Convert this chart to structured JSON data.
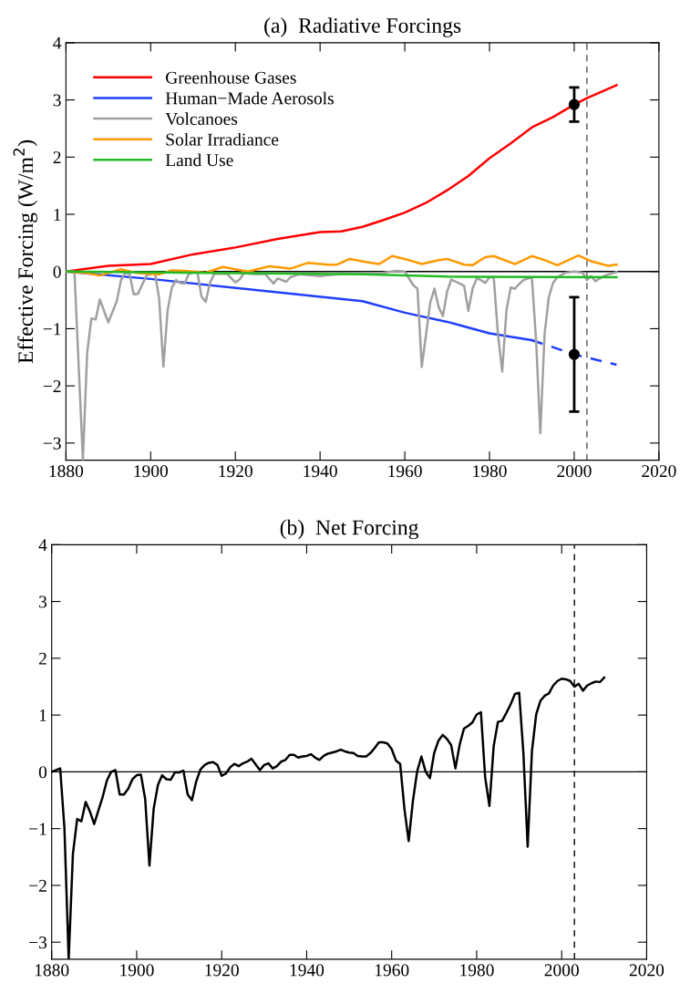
{
  "chart_data": [
    {
      "type": "line",
      "title": "(a)  Radiative Forcings",
      "ylabel": "Effective Forcing (W/m$^{2}$)",
      "xlim": [
        1880,
        2020
      ],
      "xticks": [
        1880,
        1900,
        1920,
        1940,
        1960,
        1980,
        2000,
        2020
      ],
      "ylim": [
        -3.3,
        4
      ],
      "yticks": [
        -3,
        -2,
        -1,
        0,
        1,
        2,
        3,
        4
      ],
      "grid": false,
      "legend": "top left",
      "ref_lines": [
        {
          "axis": "y",
          "value": 0,
          "color": "#000000",
          "line_style": "solid"
        },
        {
          "axis": "x",
          "value": 2003,
          "color": "#555555",
          "line_style": "dashed"
        }
      ],
      "series": [
        {
          "name": "Greenhouse Gases",
          "color": "#ff0000",
          "x": [
            1880,
            1890,
            1900,
            1910,
            1920,
            1930,
            1940,
            1945,
            1950,
            1955,
            1960,
            1965,
            1970,
            1975,
            1980,
            1985,
            1990,
            1995,
            2000,
            2003,
            2010
          ],
          "values": [
            0,
            0.1,
            0.13,
            0.3,
            0.42,
            0.57,
            0.69,
            0.7,
            0.78,
            0.9,
            1.03,
            1.2,
            1.42,
            1.67,
            1.98,
            2.24,
            2.52,
            2.7,
            2.92,
            3.03,
            3.26
          ]
        },
        {
          "name": "Human−Made Aerosols",
          "color": "#1f3fff",
          "x": [
            1880,
            1900,
            1950,
            1960,
            1970,
            1980,
            1990
          ],
          "values": [
            0,
            -0.13,
            -0.52,
            -0.72,
            -0.88,
            -1.08,
            -1.2
          ]
        },
        {
          "color": "#1f3fff",
          "line_style": "dashed",
          "x": [
            1990,
            2000,
            2010
          ],
          "values": [
            -1.2,
            -1.45,
            -1.63
          ]
        },
        {
          "name": "Volcanoes",
          "color": "#a0a0a0",
          "x": [
            1880,
            1882,
            1884,
            1885,
            1886,
            1887,
            1888,
            1890,
            1892,
            1893,
            1894,
            1895,
            1896,
            1897,
            1898,
            1899,
            1901,
            1902,
            1903,
            1904,
            1905,
            1906,
            1907,
            1908,
            1909,
            1910,
            1911,
            1912,
            1913,
            1914,
            1915,
            1918,
            1920,
            1921,
            1922,
            1925,
            1927,
            1929,
            1930,
            1932,
            1933,
            1935,
            1937,
            1940,
            1945,
            1950,
            1955,
            1958,
            1960,
            1962,
            1963,
            1964,
            1966,
            1967,
            1968,
            1969,
            1970,
            1971,
            1974,
            1975,
            1976,
            1977,
            1978,
            1979,
            1980,
            1981,
            1982,
            1983,
            1984,
            1985,
            1986,
            1987,
            1988,
            1990,
            1991,
            1992,
            1993,
            1994,
            1995,
            1996,
            1998,
            2000,
            2002,
            2003,
            2004,
            2005,
            2007,
            2009,
            2010
          ],
          "values": [
            0,
            0,
            -3.3,
            -1.43,
            -0.82,
            -0.84,
            -0.49,
            -0.89,
            -0.52,
            -0.15,
            -0.02,
            -0.04,
            -0.4,
            -0.39,
            -0.23,
            -0.07,
            -0.02,
            -0.47,
            -1.66,
            -0.68,
            -0.28,
            -0.15,
            -0.2,
            -0.21,
            -0.04,
            -0.02,
            0,
            -0.44,
            -0.53,
            -0.2,
            -0.04,
            -0.04,
            -0.19,
            -0.14,
            -0.03,
            -0.05,
            -0.04,
            -0.21,
            -0.12,
            -0.18,
            -0.1,
            -0.05,
            -0.06,
            -0.08,
            -0.04,
            -0.03,
            -0.02,
            0.01,
            0,
            -0.24,
            -0.3,
            -1.67,
            -0.55,
            -0.3,
            -0.62,
            -0.78,
            -0.35,
            -0.14,
            -0.25,
            -0.69,
            -0.3,
            -0.12,
            -0.15,
            -0.2,
            -0.1,
            -0.1,
            -1.1,
            -1.75,
            -0.68,
            -0.28,
            -0.3,
            -0.22,
            -0.15,
            -0.1,
            -1.2,
            -2.83,
            -1.1,
            -0.45,
            -0.2,
            -0.1,
            -0.02,
            0,
            -0.02,
            -0.15,
            -0.08,
            -0.17,
            -0.08,
            -0.03,
            -0.01
          ]
        },
        {
          "name": "Solar Irradiance",
          "color": "#ff9900",
          "x": [
            1880,
            1885,
            1888,
            1893,
            1897,
            1902,
            1905,
            1908,
            1913,
            1917,
            1923,
            1928,
            1933,
            1937,
            1942,
            1944,
            1947,
            1952,
            1954,
            1957,
            1960,
            1964,
            1968,
            1970,
            1974,
            1976,
            1979,
            1981,
            1986,
            1990,
            1993,
            1996,
            2001,
            2004,
            2008,
            2010
          ],
          "values": [
            0,
            -0.03,
            -0.07,
            0.04,
            -0.03,
            -0.05,
            0.02,
            0.01,
            -0.02,
            0.08,
            0,
            0.09,
            0.05,
            0.15,
            0.12,
            0.12,
            0.22,
            0.15,
            0.13,
            0.27,
            0.22,
            0.13,
            0.2,
            0.22,
            0.12,
            0.11,
            0.25,
            0.27,
            0.13,
            0.27,
            0.2,
            0.11,
            0.28,
            0.18,
            0.1,
            0.12
          ]
        },
        {
          "name": "Land Use",
          "color": "#22bb22",
          "x": [
            1880,
            1950,
            1970,
            2010
          ],
          "values": [
            0,
            -0.05,
            -0.09,
            -0.1
          ]
        },
        {
          "type": "scatter",
          "color": "#000000",
          "marker": "circle",
          "x": [
            2000
          ],
          "values": [
            2.92
          ],
          "errors": [
            [
              2.62,
              3.22
            ]
          ]
        },
        {
          "type": "scatter",
          "color": "#000000",
          "marker": "circle",
          "x": [
            2000
          ],
          "values": [
            -1.45
          ],
          "errors": [
            [
              -2.45,
              -0.45
            ]
          ]
        }
      ]
    },
    {
      "type": "line",
      "title": "(b)  Net Forcing",
      "xlim": [
        1880,
        2020
      ],
      "xticks": [
        1880,
        1900,
        1920,
        1940,
        1960,
        1980,
        2000,
        2020
      ],
      "ylim": [
        -3.3,
        4
      ],
      "yticks": [
        -3,
        -2,
        -1,
        0,
        1,
        2,
        3,
        4
      ],
      "grid": false,
      "ref_lines": [
        {
          "axis": "y",
          "value": 0,
          "color": "#000000",
          "line_style": "solid"
        },
        {
          "axis": "x",
          "value": 2003,
          "color": "#000000",
          "line_style": "dashed"
        }
      ],
      "series": [
        {
          "color": "#000000",
          "x": [
            1880,
            1882,
            1883,
            1884,
            1885,
            1886,
            1887,
            1888,
            1889,
            1890,
            1891,
            1892,
            1893,
            1894,
            1895,
            1896,
            1897,
            1898,
            1899,
            1900,
            1901,
            1902,
            1903,
            1904,
            1905,
            1906,
            1907,
            1908,
            1909,
            1910,
            1911,
            1912,
            1913,
            1914,
            1915,
            1916,
            1917,
            1918,
            1919,
            1920,
            1921,
            1922,
            1923,
            1924,
            1925,
            1926,
            1927,
            1928,
            1929,
            1930,
            1931,
            1932,
            1933,
            1934,
            1935,
            1936,
            1937,
            1938,
            1939,
            1940,
            1941,
            1942,
            1943,
            1944,
            1945,
            1946,
            1947,
            1948,
            1949,
            1950,
            1951,
            1952,
            1953,
            1954,
            1955,
            1956,
            1957,
            1958,
            1959,
            1960,
            1961,
            1962,
            1963,
            1964,
            1965,
            1966,
            1967,
            1968,
            1969,
            1970,
            1971,
            1972,
            1973,
            1974,
            1975,
            1976,
            1977,
            1978,
            1979,
            1980,
            1981,
            1982,
            1983,
            1984,
            1985,
            1986,
            1987,
            1988,
            1989,
            1990,
            1991,
            1992,
            1993,
            1994,
            1995,
            1996,
            1997,
            1998,
            1999,
            2000,
            2001,
            2002,
            2003,
            2004,
            2005,
            2006,
            2007,
            2008,
            2009,
            2010
          ],
          "values": [
            0,
            0.06,
            -0.99,
            -3.3,
            -1.44,
            -0.83,
            -0.87,
            -0.53,
            -0.7,
            -0.92,
            -0.68,
            -0.44,
            -0.15,
            0,
            0.03,
            -0.4,
            -0.4,
            -0.3,
            -0.13,
            -0.06,
            -0.05,
            -0.48,
            -1.65,
            -0.65,
            -0.23,
            -0.06,
            -0.13,
            -0.14,
            -0.01,
            -0.01,
            0.02,
            -0.4,
            -0.5,
            -0.17,
            0.04,
            0.12,
            0.16,
            0.17,
            0.12,
            -0.07,
            -0.03,
            0.08,
            0.14,
            0.1,
            0.15,
            0.18,
            0.23,
            0.13,
            0.03,
            0.12,
            0.15,
            0.06,
            0.1,
            0.18,
            0.21,
            0.3,
            0.3,
            0.25,
            0.27,
            0.28,
            0.31,
            0.25,
            0.21,
            0.28,
            0.32,
            0.34,
            0.36,
            0.39,
            0.36,
            0.34,
            0.33,
            0.28,
            0.27,
            0.27,
            0.33,
            0.42,
            0.52,
            0.52,
            0.5,
            0.4,
            0.2,
            0.14,
            -0.65,
            -1.22,
            -0.51,
            0.01,
            0.27,
            0,
            -0.11,
            0.33,
            0.55,
            0.65,
            0.58,
            0.47,
            0.06,
            0.48,
            0.76,
            0.81,
            0.87,
            1.01,
            1.05,
            -0.1,
            -0.6,
            0.45,
            0.88,
            0.9,
            1.04,
            1.19,
            1.37,
            1.39,
            0.32,
            -1.32,
            0.36,
            1.01,
            1.25,
            1.34,
            1.38,
            1.52,
            1.6,
            1.64,
            1.63,
            1.6,
            1.5,
            1.55,
            1.43,
            1.52,
            1.56,
            1.59,
            1.58,
            1.66
          ]
        }
      ]
    }
  ]
}
